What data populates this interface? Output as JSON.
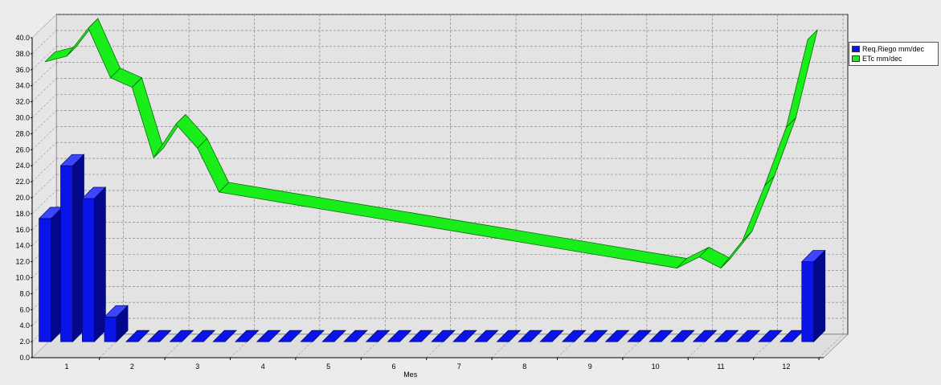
{
  "chart_data": {
    "type": "bar",
    "xlabel": "Mes",
    "ylabel": "",
    "ylim": [
      0,
      40
    ],
    "yticks": [
      "0.0",
      "2.0",
      "4.0",
      "6.0",
      "8.0",
      "10.0",
      "12.0",
      "14.0",
      "16.0",
      "18.0",
      "20.0",
      "22.0",
      "24.0",
      "26.0",
      "28.0",
      "30.0",
      "32.0",
      "34.0",
      "36.0",
      "38.0",
      "40.0"
    ],
    "categories": [
      "1",
      "2",
      "3",
      "4",
      "5",
      "6",
      "7",
      "8",
      "9",
      "10",
      "11",
      "12"
    ],
    "grid": true,
    "legend_position": "right",
    "series": [
      {
        "name": "Req.Riego  mm/dec",
        "render": "bar",
        "color": "#0a14e6",
        "x": [
          0.67,
          1.0,
          1.33,
          1.67,
          2.0,
          2.33,
          2.67,
          3.0,
          3.33,
          3.67,
          4.0,
          4.33,
          4.67,
          5.0,
          5.33,
          5.67,
          6.0,
          6.33,
          6.67,
          7.0,
          7.33,
          7.67,
          8.0,
          8.33,
          8.67,
          9.0,
          9.33,
          9.67,
          10.0,
          10.33,
          10.67,
          11.0,
          11.33,
          11.67,
          12.0,
          12.33
        ],
        "values": [
          15.4,
          22.0,
          17.9,
          3.1,
          0,
          0,
          0,
          0,
          0,
          0,
          0,
          0,
          0,
          0,
          0,
          0,
          0,
          0,
          0,
          0,
          0,
          0,
          0,
          0,
          0,
          0,
          0,
          0,
          0,
          0,
          0,
          0,
          0,
          0,
          0,
          10.0
        ]
      },
      {
        "name": "ETc  mm/dec",
        "render": "ribbon-line",
        "color": "#1aee1a",
        "x": [
          0.67,
          1.0,
          1.33,
          1.67,
          2.0,
          2.33,
          2.67,
          3.0,
          3.33,
          10.33,
          10.67,
          11.0,
          11.33,
          11.67,
          12.0,
          12.33
        ],
        "values": [
          37.0,
          37.7,
          41.2,
          35.0,
          33.8,
          25.0,
          29.2,
          26.2,
          20.7,
          11.2,
          12.6,
          11.2,
          14.6,
          21.5,
          28.8,
          39.8
        ]
      }
    ]
  }
}
